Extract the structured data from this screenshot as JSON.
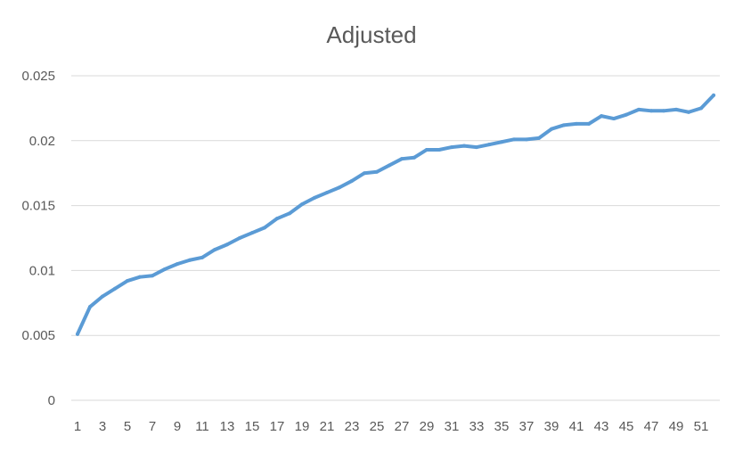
{
  "chart_data": {
    "type": "line",
    "title": "Adjusted",
    "xlabel": "",
    "ylabel": "",
    "x": [
      1,
      2,
      3,
      4,
      5,
      6,
      7,
      8,
      9,
      10,
      11,
      12,
      13,
      14,
      15,
      16,
      17,
      18,
      19,
      20,
      21,
      22,
      23,
      24,
      25,
      26,
      27,
      28,
      29,
      30,
      31,
      32,
      33,
      34,
      35,
      36,
      37,
      38,
      39,
      40,
      41,
      42,
      43,
      44,
      45,
      46,
      47,
      48,
      49,
      50,
      51,
      52
    ],
    "x_tick_labels": [
      "1",
      "3",
      "5",
      "7",
      "9",
      "11",
      "13",
      "15",
      "17",
      "19",
      "21",
      "23",
      "25",
      "27",
      "29",
      "31",
      "33",
      "35",
      "37",
      "39",
      "41",
      "43",
      "45",
      "47",
      "49",
      "51"
    ],
    "y_tick_labels": [
      "0",
      "0.005",
      "0.01",
      "0.015",
      "0.02",
      "0.025"
    ],
    "y_ticks": [
      0,
      0.005,
      0.01,
      0.015,
      0.02,
      0.025
    ],
    "ylim": [
      0,
      0.025
    ],
    "grid": true,
    "legend": "none",
    "series": [
      {
        "color": "#5b9bd5",
        "values": [
          0.0051,
          0.0072,
          0.008,
          0.0086,
          0.0092,
          0.0095,
          0.0096,
          0.0101,
          0.0105,
          0.0108,
          0.011,
          0.0116,
          0.012,
          0.0125,
          0.0129,
          0.0133,
          0.014,
          0.0144,
          0.0151,
          0.0156,
          0.016,
          0.0164,
          0.0169,
          0.0175,
          0.0176,
          0.0181,
          0.0186,
          0.0187,
          0.0193,
          0.0193,
          0.0195,
          0.0196,
          0.0195,
          0.0197,
          0.0199,
          0.0201,
          0.0201,
          0.0202,
          0.0209,
          0.0212,
          0.0213,
          0.0213,
          0.0219,
          0.0217,
          0.022,
          0.0224,
          0.0223,
          0.0223,
          0.0224,
          0.0222,
          0.0225,
          0.0235
        ]
      }
    ]
  }
}
